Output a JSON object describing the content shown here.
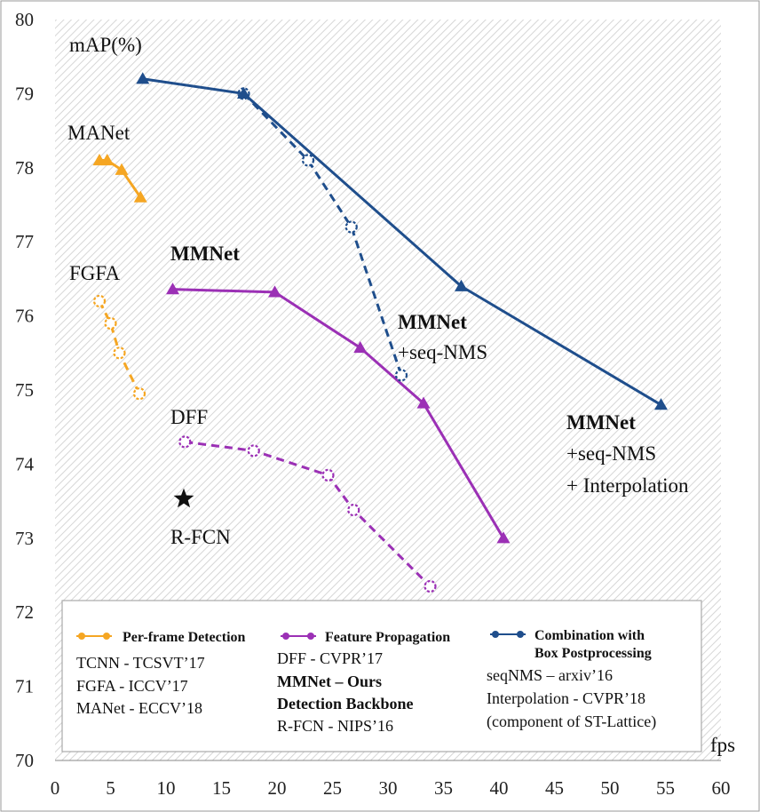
{
  "chart_data": {
    "type": "line",
    "title": "",
    "ylabel": "mAP(%)",
    "xlabel": "fps",
    "xlim": [
      0,
      60
    ],
    "ylim": [
      70,
      80
    ],
    "x_ticks": [
      "0",
      "5",
      "10",
      "15",
      "20",
      "25",
      "30",
      "35",
      "40",
      "45",
      "50",
      "55",
      "60"
    ],
    "y_ticks": [
      "70",
      "71",
      "72",
      "73",
      "74",
      "75",
      "76",
      "77",
      "78",
      "79",
      "80"
    ],
    "colors": {
      "orange": "#f5a623",
      "purple": "#9b30b5",
      "blue": "#1f4e8c",
      "star": "#111111"
    },
    "series": [
      {
        "name": "MANet",
        "color": "orange",
        "style": "solid",
        "marker": "triangle",
        "x": [
          4.0,
          4.7,
          6.0,
          7.7
        ],
        "y": [
          78.1,
          78.1,
          77.97,
          77.6
        ]
      },
      {
        "name": "FGFA",
        "color": "orange",
        "style": "dashed",
        "marker": "circle-open",
        "x": [
          4.0,
          5.0,
          5.8,
          7.6
        ],
        "y": [
          76.2,
          75.9,
          75.5,
          74.95
        ]
      },
      {
        "name": "MMNet",
        "color": "purple",
        "style": "solid",
        "marker": "triangle",
        "x": [
          10.6,
          19.8,
          27.5,
          33.2,
          40.4
        ],
        "y": [
          76.36,
          76.32,
          75.57,
          74.82,
          73.0
        ]
      },
      {
        "name": "DFF",
        "color": "purple",
        "style": "dashed",
        "marker": "circle-open",
        "x": [
          11.7,
          17.9,
          24.6,
          26.9,
          33.8
        ],
        "y": [
          74.3,
          74.18,
          73.85,
          73.38,
          72.35
        ]
      },
      {
        "name": "MMNet +seq-NMS",
        "color": "blue",
        "style": "dashed",
        "marker": "circle-open",
        "x": [
          17.0,
          22.8,
          26.7,
          31.2
        ],
        "y": [
          79.0,
          78.1,
          77.2,
          75.2
        ]
      },
      {
        "name": "MMNet +seq-NMS + Interpolation",
        "color": "blue",
        "style": "solid",
        "marker": "triangle",
        "x": [
          7.9,
          17.0,
          36.6,
          54.6
        ],
        "y": [
          79.2,
          79.0,
          76.4,
          74.8
        ]
      }
    ],
    "points": [
      {
        "name": "R-FCN",
        "marker": "star",
        "x": 11.6,
        "y": 73.53
      }
    ],
    "annotations": {
      "manet": "MANet",
      "fgfa": "FGFA",
      "mmnet": "MMNet",
      "dff": "DFF",
      "rfcn": "R-FCN",
      "seqnms_bold": "MMNet",
      "seqnms_line": "+seq-NMS",
      "interp_bold": "MMNet",
      "interp_line1": "+seq-NMS",
      "interp_line2": "+ Interpolation"
    },
    "legend": {
      "position": "bottom",
      "groups": [
        {
          "header": "Per-frame  Detection",
          "color": "orange",
          "lines": [
            "TCNN - TCSVT’17",
            "FGFA - ICCV’17",
            "MANet - ECCV’18"
          ]
        },
        {
          "header": "Feature Propagation",
          "color": "purple",
          "lines": [
            "DFF - CVPR’17",
            "MMNet – Ours",
            "Detection Backbone",
            "R-FCN - NIPS’16"
          ]
        },
        {
          "header": "Combination with",
          "header2": "Box Postprocessing",
          "color": "blue",
          "lines": [
            "seqNMS  – arxiv’16",
            "Interpolation - CVPR’18",
            "(component of  ST-Lattice)"
          ]
        }
      ]
    }
  }
}
